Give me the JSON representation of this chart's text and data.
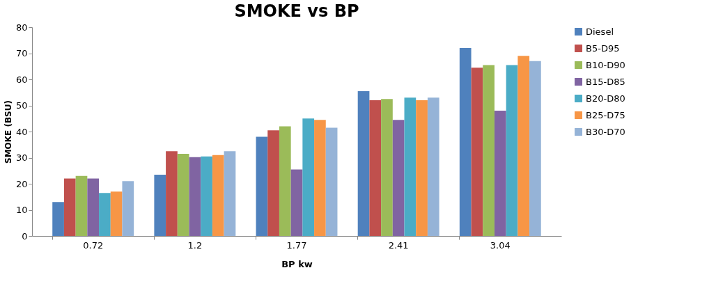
{
  "chart_data": {
    "type": "bar",
    "title": "SMOKE vs BP",
    "xlabel": "BP kw",
    "ylabel": "SMOKE (BSU)",
    "categories": [
      "0.72",
      "1.2",
      "1.77",
      "2.41",
      "3.04"
    ],
    "series": [
      {
        "name": "Diesel",
        "color": "#4f81bd",
        "values": [
          13,
          23.5,
          38,
          55.5,
          72
        ]
      },
      {
        "name": "B5-D95",
        "color": "#c0504d",
        "values": [
          22,
          32.5,
          40.5,
          52,
          64.5
        ]
      },
      {
        "name": "B10-D90",
        "color": "#9bbb59",
        "values": [
          23,
          31.5,
          42,
          52.5,
          65.5
        ]
      },
      {
        "name": "B15-D85",
        "color": "#8064a2",
        "values": [
          22,
          30.2,
          25.5,
          44.5,
          48
        ]
      },
      {
        "name": "B20-D80",
        "color": "#4bacc6",
        "values": [
          16.5,
          30.5,
          45,
          53,
          65.5
        ]
      },
      {
        "name": "B25-D75",
        "color": "#f79646",
        "values": [
          17,
          31,
          44.5,
          52,
          69
        ]
      },
      {
        "name": "B30-D70",
        "color": "#95b3d7",
        "values": [
          21,
          32.5,
          41.5,
          53,
          67
        ]
      }
    ],
    "ylim": [
      0,
      80
    ],
    "yticks": [
      0,
      10,
      20,
      30,
      40,
      50,
      60,
      70,
      80
    ],
    "grid": false,
    "legend": "right"
  }
}
